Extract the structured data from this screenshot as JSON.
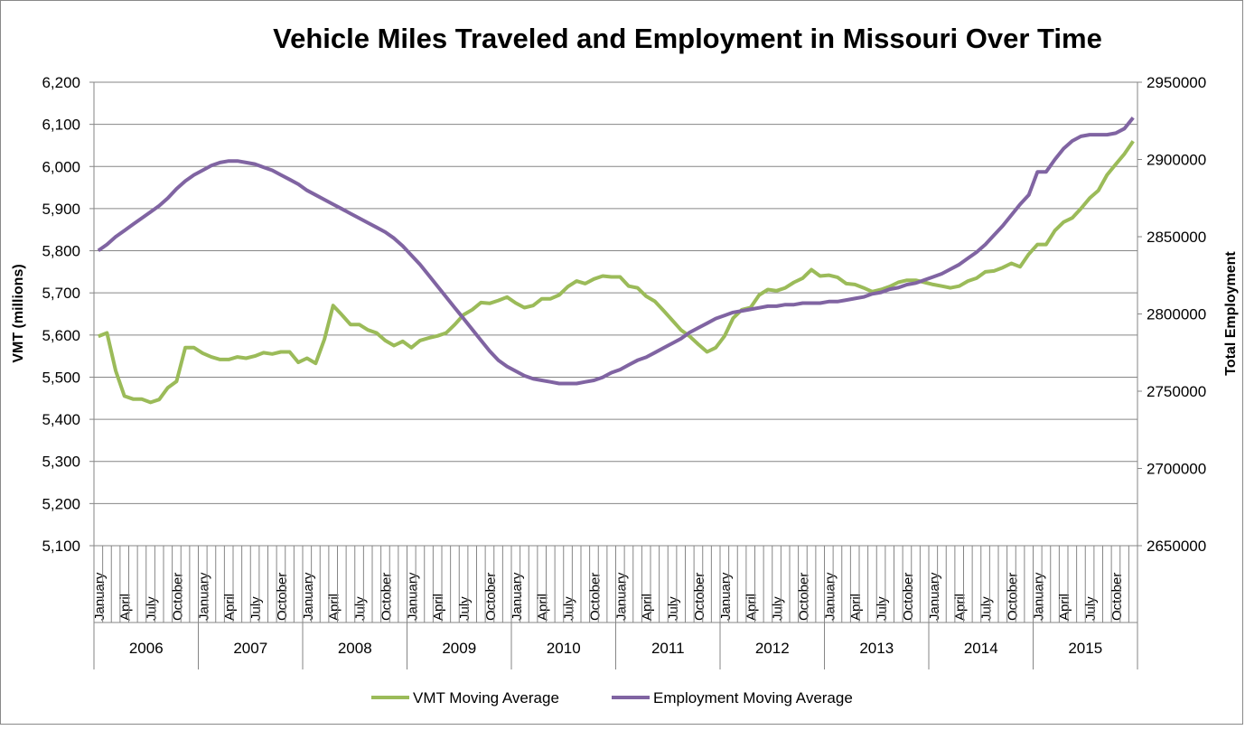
{
  "chart_data": {
    "type": "line",
    "title": "Vehicle Miles Traveled and Employment in Missouri Over Time",
    "ylabel": "VMT (millions)",
    "y2label": "Total Employment",
    "ylim": [
      5100,
      6200
    ],
    "y2lim": [
      2650000,
      2950000
    ],
    "yticks": [
      "5,100",
      "5,200",
      "5,300",
      "5,400",
      "5,500",
      "5,600",
      "5,700",
      "5,800",
      "5,900",
      "6,000",
      "6,100",
      "6,200"
    ],
    "y2ticks": [
      "2650000",
      "2700000",
      "2750000",
      "2800000",
      "2850000",
      "2900000",
      "2950000"
    ],
    "years": [
      "2006",
      "2007",
      "2008",
      "2009",
      "2010",
      "2011",
      "2012",
      "2013",
      "2014",
      "2015"
    ],
    "month_labels": [
      "January",
      "April",
      "July",
      "October"
    ],
    "grid": true,
    "legend_position": "bottom",
    "series": [
      {
        "name": "VMT Moving Average",
        "axis": "left",
        "color": "#9BBB59",
        "values": [
          5597,
          5605,
          5515,
          5455,
          5448,
          5448,
          5440,
          5447,
          5475,
          5490,
          5570,
          5570,
          5557,
          5548,
          5542,
          5542,
          5548,
          5545,
          5550,
          5558,
          5555,
          5560,
          5560,
          5535,
          5545,
          5533,
          5590,
          5670,
          5648,
          5625,
          5625,
          5612,
          5605,
          5587,
          5575,
          5585,
          5570,
          5587,
          5593,
          5598,
          5605,
          5625,
          5648,
          5660,
          5677,
          5675,
          5682,
          5690,
          5676,
          5665,
          5670,
          5686,
          5686,
          5695,
          5715,
          5728,
          5722,
          5733,
          5740,
          5738,
          5738,
          5716,
          5712,
          5692,
          5680,
          5658,
          5635,
          5612,
          5597,
          5578,
          5560,
          5570,
          5597,
          5640,
          5660,
          5665,
          5695,
          5708,
          5705,
          5712,
          5725,
          5735,
          5755,
          5740,
          5742,
          5737,
          5722,
          5720,
          5712,
          5703,
          5708,
          5715,
          5725,
          5730,
          5730,
          5725,
          5720,
          5716,
          5712,
          5716,
          5728,
          5735,
          5750,
          5752,
          5760,
          5770,
          5762,
          5792,
          5815,
          5815,
          5848,
          5868,
          5878,
          5900,
          5925,
          5943,
          5980,
          6005,
          6030,
          6060
        ]
      },
      {
        "name": "Employment Moving Average",
        "axis": "right",
        "color": "#8064A2",
        "values": [
          2841000,
          2845000,
          2850000,
          2854000,
          2858000,
          2862000,
          2866000,
          2870000,
          2875000,
          2881000,
          2886000,
          2890000,
          2893000,
          2896000,
          2898000,
          2899000,
          2899000,
          2898000,
          2897000,
          2895000,
          2893000,
          2890000,
          2887000,
          2884000,
          2880000,
          2877000,
          2874000,
          2871000,
          2868000,
          2865000,
          2862000,
          2859000,
          2856000,
          2853000,
          2849000,
          2844000,
          2838000,
          2832000,
          2825000,
          2818000,
          2811000,
          2804000,
          2797000,
          2790000,
          2783000,
          2776000,
          2770000,
          2766000,
          2763000,
          2760000,
          2758000,
          2757000,
          2756000,
          2755000,
          2755000,
          2755000,
          2756000,
          2757000,
          2759000,
          2762000,
          2764000,
          2767000,
          2770000,
          2772000,
          2775000,
          2778000,
          2781000,
          2784000,
          2788000,
          2791000,
          2794000,
          2797000,
          2799000,
          2801000,
          2802000,
          2803000,
          2804000,
          2805000,
          2805000,
          2806000,
          2806000,
          2807000,
          2807000,
          2807000,
          2808000,
          2808000,
          2809000,
          2810000,
          2811000,
          2813000,
          2814000,
          2816000,
          2817000,
          2819000,
          2820000,
          2822000,
          2824000,
          2826000,
          2829000,
          2832000,
          2836000,
          2840000,
          2845000,
          2851000,
          2857000,
          2864000,
          2871000,
          2877000,
          2892000,
          2892000,
          2900000,
          2907000,
          2912000,
          2915000,
          2916000,
          2916000,
          2916000,
          2917000,
          2920000,
          2927000
        ]
      }
    ]
  }
}
